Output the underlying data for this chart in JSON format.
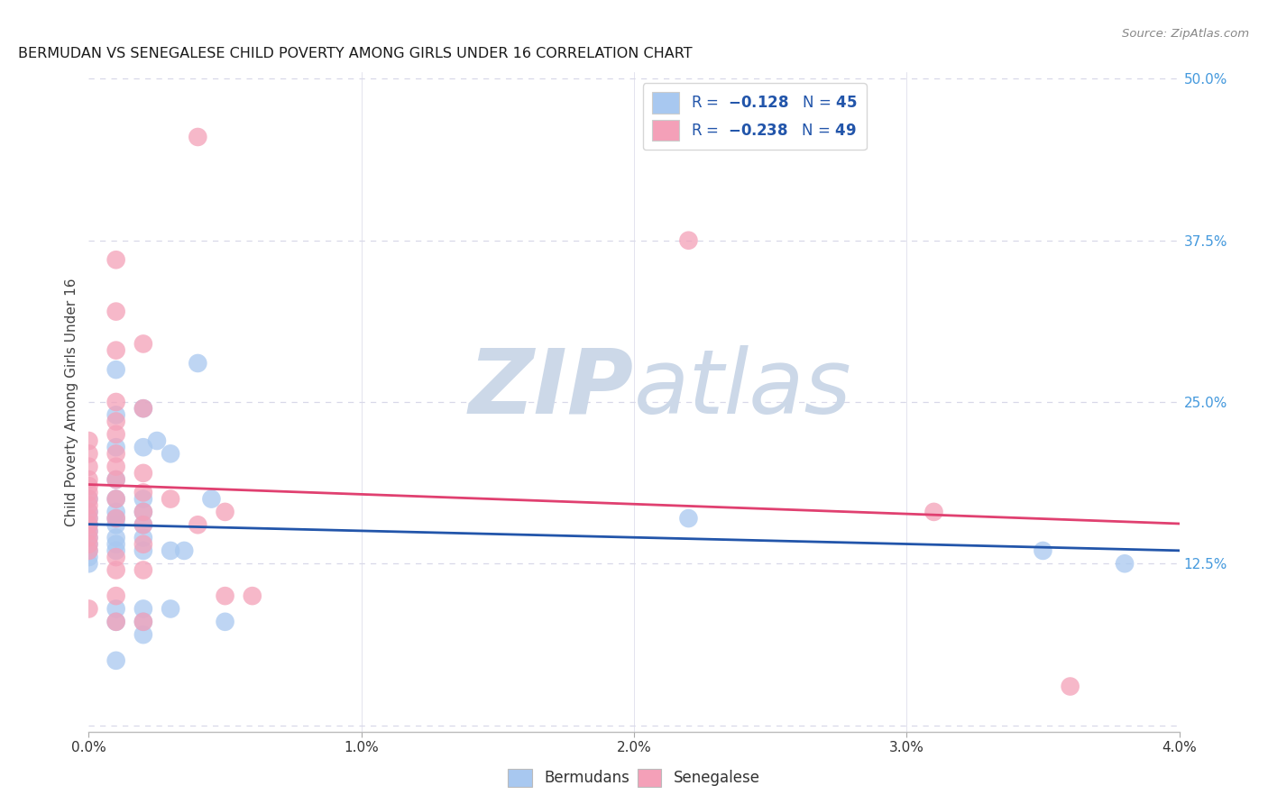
{
  "title": "BERMUDAN VS SENEGALESE CHILD POVERTY AMONG GIRLS UNDER 16 CORRELATION CHART",
  "source": "Source: ZipAtlas.com",
  "ylabel": "Child Poverty Among Girls Under 16",
  "xlim": [
    0.0,
    0.04
  ],
  "ylim": [
    -0.005,
    0.505
  ],
  "xticks": [
    0.0,
    0.01,
    0.02,
    0.03,
    0.04
  ],
  "xticklabels": [
    "0.0%",
    "1.0%",
    "2.0%",
    "3.0%",
    "4.0%"
  ],
  "yticks_right": [
    0.0,
    0.125,
    0.25,
    0.375,
    0.5
  ],
  "yticklabels_right": [
    "",
    "12.5%",
    "25.0%",
    "37.5%",
    "50.0%"
  ],
  "blue_color": "#a8c8f0",
  "pink_color": "#f4a0b8",
  "blue_line_color": "#2255aa",
  "pink_line_color": "#e04070",
  "blue_scatter": [
    [
      0.0,
      0.175
    ],
    [
      0.0,
      0.165
    ],
    [
      0.0,
      0.16
    ],
    [
      0.0,
      0.155
    ],
    [
      0.0,
      0.15
    ],
    [
      0.0,
      0.145
    ],
    [
      0.0,
      0.14
    ],
    [
      0.0,
      0.135
    ],
    [
      0.0,
      0.13
    ],
    [
      0.0,
      0.125
    ],
    [
      0.001,
      0.275
    ],
    [
      0.001,
      0.24
    ],
    [
      0.001,
      0.215
    ],
    [
      0.001,
      0.19
    ],
    [
      0.001,
      0.175
    ],
    [
      0.001,
      0.165
    ],
    [
      0.001,
      0.16
    ],
    [
      0.001,
      0.155
    ],
    [
      0.001,
      0.145
    ],
    [
      0.001,
      0.14
    ],
    [
      0.001,
      0.135
    ],
    [
      0.001,
      0.09
    ],
    [
      0.001,
      0.08
    ],
    [
      0.001,
      0.05
    ],
    [
      0.002,
      0.245
    ],
    [
      0.002,
      0.215
    ],
    [
      0.002,
      0.175
    ],
    [
      0.002,
      0.165
    ],
    [
      0.002,
      0.155
    ],
    [
      0.002,
      0.145
    ],
    [
      0.002,
      0.135
    ],
    [
      0.002,
      0.09
    ],
    [
      0.002,
      0.08
    ],
    [
      0.002,
      0.07
    ],
    [
      0.0025,
      0.22
    ],
    [
      0.003,
      0.21
    ],
    [
      0.003,
      0.135
    ],
    [
      0.003,
      0.09
    ],
    [
      0.0035,
      0.135
    ],
    [
      0.004,
      0.28
    ],
    [
      0.0045,
      0.175
    ],
    [
      0.005,
      0.08
    ],
    [
      0.022,
      0.16
    ],
    [
      0.035,
      0.135
    ],
    [
      0.038,
      0.125
    ]
  ],
  "pink_scatter": [
    [
      0.0,
      0.22
    ],
    [
      0.0,
      0.21
    ],
    [
      0.0,
      0.2
    ],
    [
      0.0,
      0.19
    ],
    [
      0.0,
      0.185
    ],
    [
      0.0,
      0.18
    ],
    [
      0.0,
      0.175
    ],
    [
      0.0,
      0.17
    ],
    [
      0.0,
      0.165
    ],
    [
      0.0,
      0.16
    ],
    [
      0.0,
      0.155
    ],
    [
      0.0,
      0.15
    ],
    [
      0.0,
      0.145
    ],
    [
      0.0,
      0.14
    ],
    [
      0.0,
      0.135
    ],
    [
      0.0,
      0.09
    ],
    [
      0.001,
      0.36
    ],
    [
      0.001,
      0.32
    ],
    [
      0.001,
      0.29
    ],
    [
      0.001,
      0.25
    ],
    [
      0.001,
      0.235
    ],
    [
      0.001,
      0.225
    ],
    [
      0.001,
      0.21
    ],
    [
      0.001,
      0.2
    ],
    [
      0.001,
      0.19
    ],
    [
      0.001,
      0.175
    ],
    [
      0.001,
      0.16
    ],
    [
      0.001,
      0.13
    ],
    [
      0.001,
      0.12
    ],
    [
      0.001,
      0.1
    ],
    [
      0.001,
      0.08
    ],
    [
      0.002,
      0.295
    ],
    [
      0.002,
      0.245
    ],
    [
      0.002,
      0.195
    ],
    [
      0.002,
      0.18
    ],
    [
      0.002,
      0.165
    ],
    [
      0.002,
      0.155
    ],
    [
      0.002,
      0.14
    ],
    [
      0.002,
      0.12
    ],
    [
      0.002,
      0.08
    ],
    [
      0.003,
      0.175
    ],
    [
      0.004,
      0.455
    ],
    [
      0.004,
      0.155
    ],
    [
      0.005,
      0.165
    ],
    [
      0.005,
      0.1
    ],
    [
      0.006,
      0.1
    ],
    [
      0.022,
      0.375
    ],
    [
      0.031,
      0.165
    ],
    [
      0.036,
      0.03
    ]
  ],
  "watermark_zip": "ZIP",
  "watermark_atlas": "atlas",
  "watermark_color": "#ccd8e8",
  "background_color": "#ffffff",
  "grid_color": "#d8d8e8",
  "title_color": "#1a1a1a",
  "source_color": "#888888",
  "ylabel_color": "#444444",
  "right_tick_color": "#4499dd",
  "legend_text_color": "#2255aa",
  "bottom_legend_color": "#333333"
}
